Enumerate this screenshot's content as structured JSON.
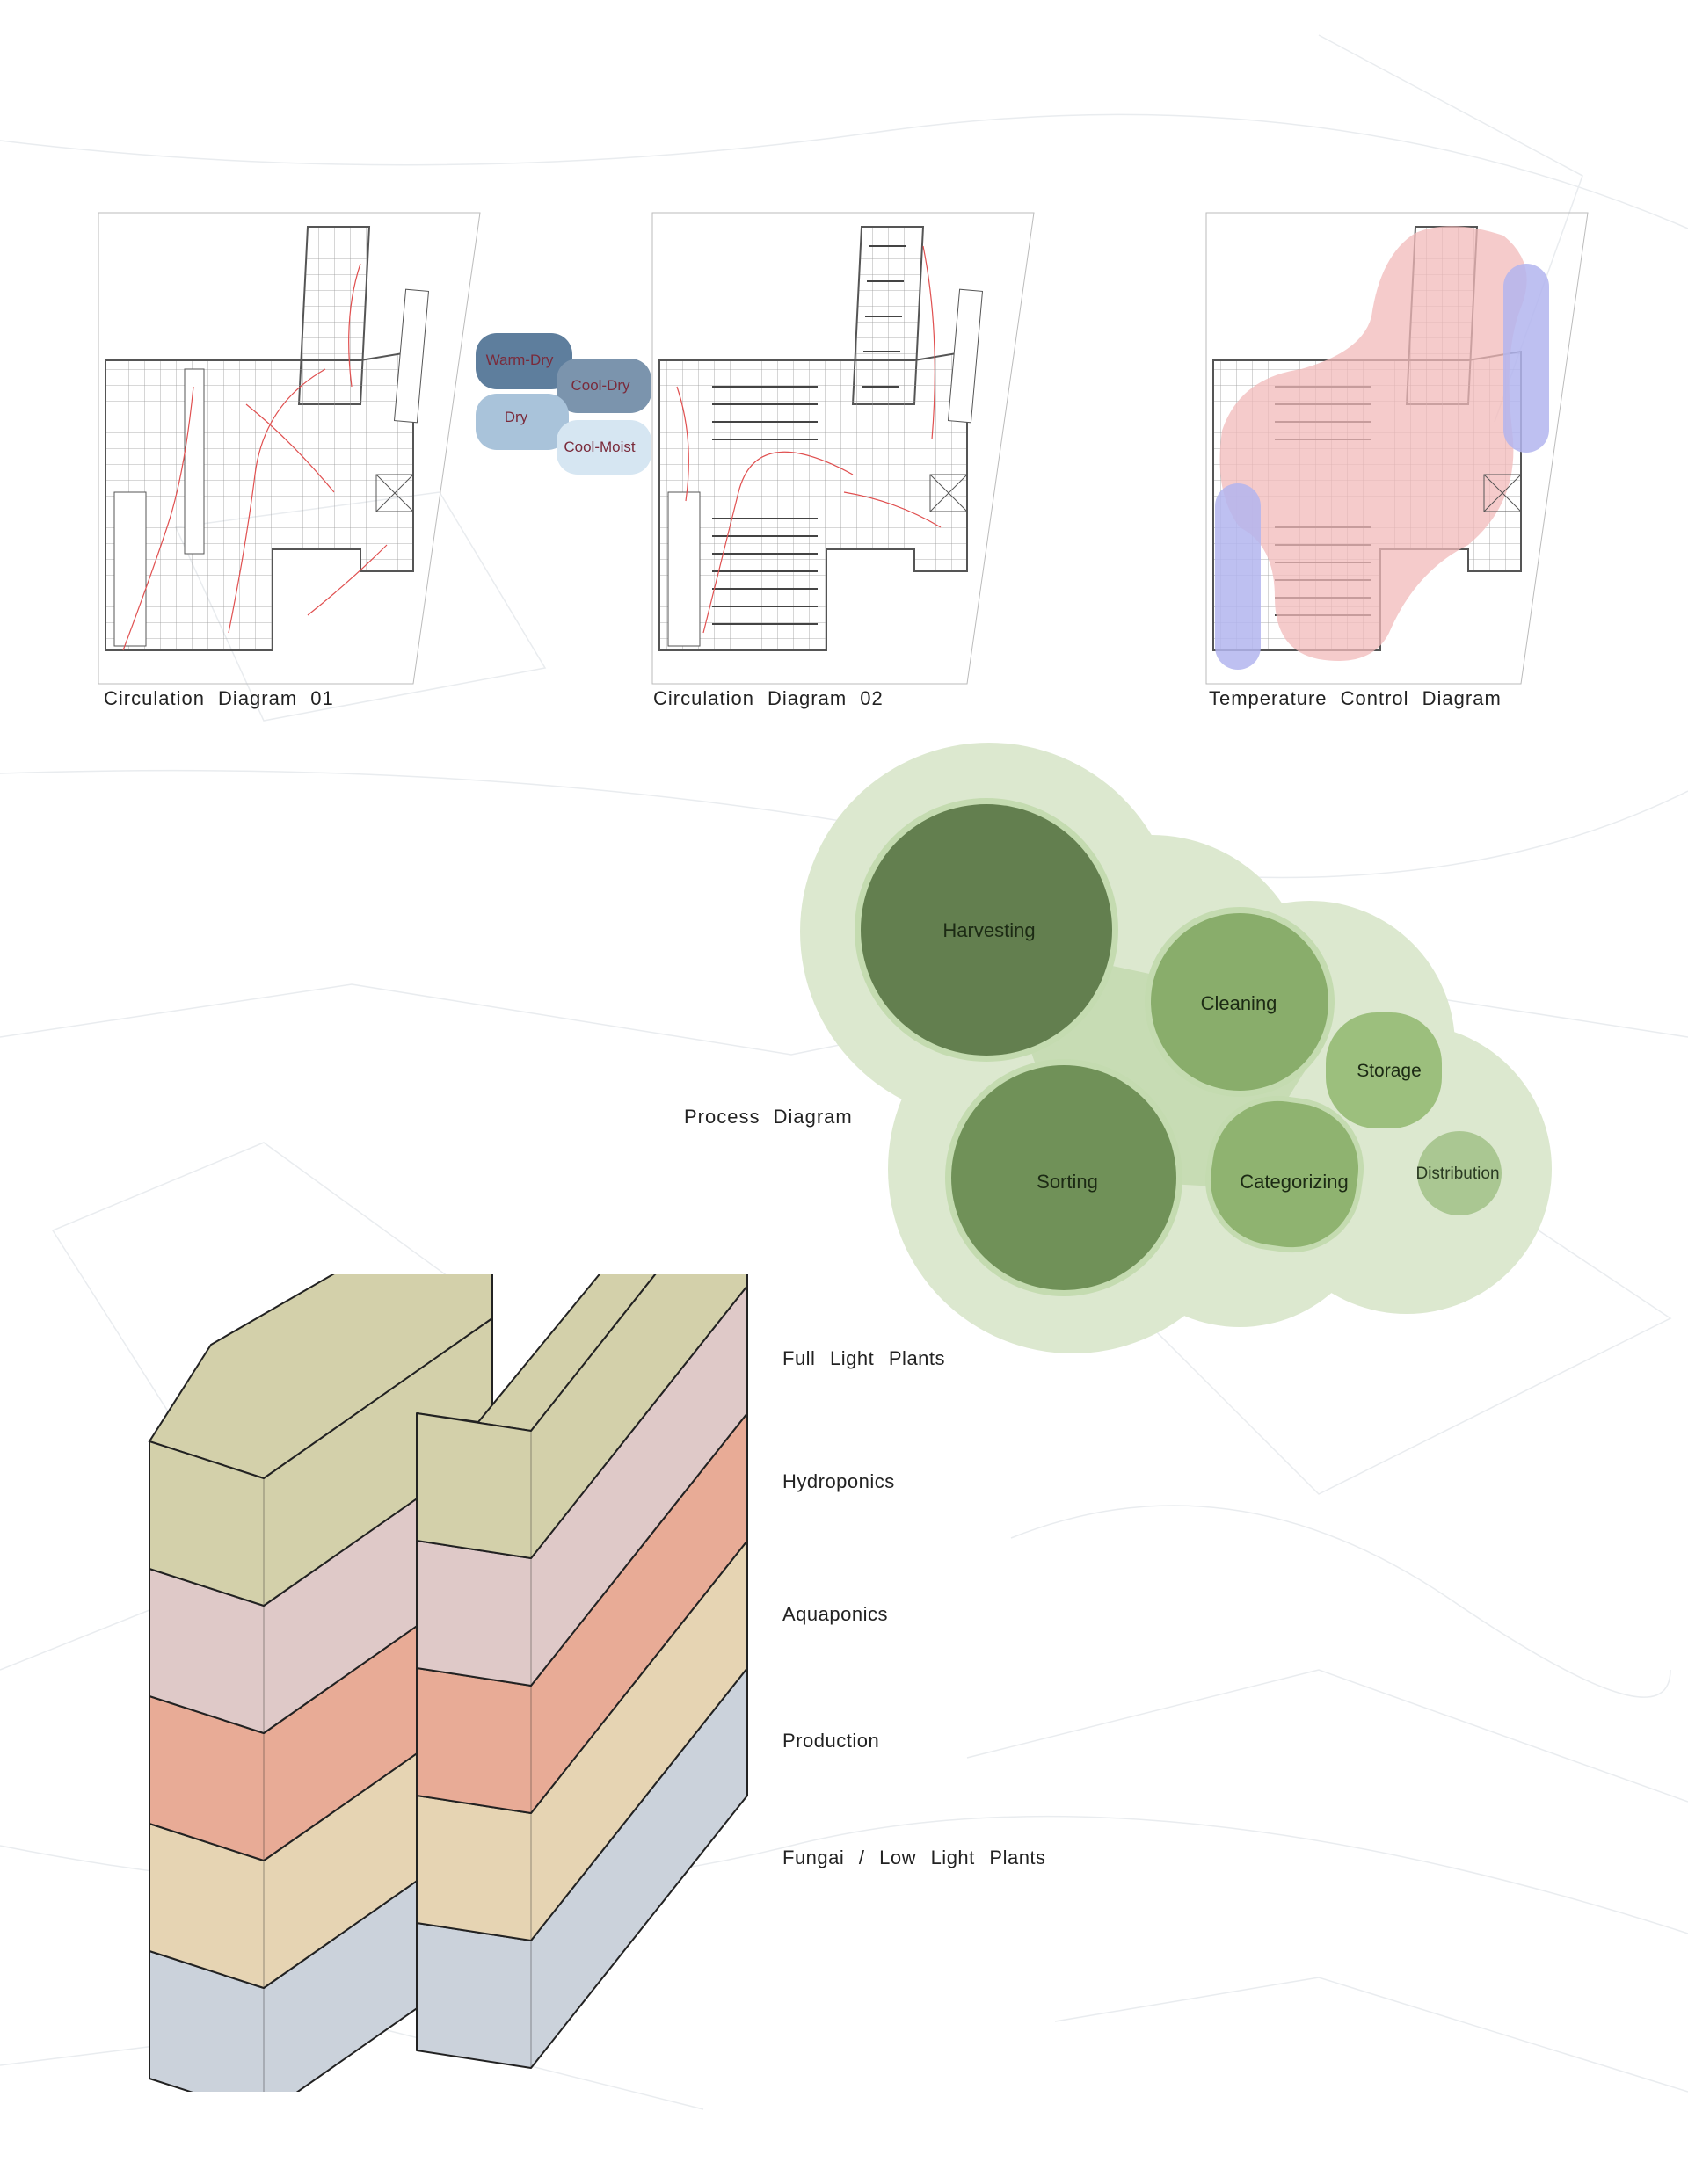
{
  "plans": [
    {
      "caption": "Circulation Diagram 01"
    },
    {
      "caption": "Circulation Diagram 02"
    },
    {
      "caption": "Temperature Control Diagram"
    }
  ],
  "climate_zones": [
    "Warm-Dry",
    "Cool-Dry",
    "Dry",
    "Cool-Moist"
  ],
  "process": {
    "caption": "Process Diagram",
    "stages": [
      "Harvesting",
      "Cleaning",
      "Storage",
      "Sorting",
      "Categorizing",
      "Distribution"
    ]
  },
  "stack": {
    "layers": [
      {
        "label": "Full Light Plants",
        "color": "#d3d0aa"
      },
      {
        "label": "Hydroponics",
        "color": "#dfc9c8"
      },
      {
        "label": "Aquaponics",
        "color": "#e8ab96"
      },
      {
        "label": "Production",
        "color": "#e6d4b3"
      },
      {
        "label": "Fungai / Low Light Plants",
        "color": "#cbd2db"
      }
    ]
  },
  "colors": {
    "warm_zone": "#f1b9b9",
    "cool_zone": "#b3b5ee",
    "process_halo": "#dce8cf",
    "process_dark": "#637f4f",
    "process_mid": "#89ad6b",
    "process_light": "#9cbf7d",
    "process_pale": "#aac792"
  }
}
